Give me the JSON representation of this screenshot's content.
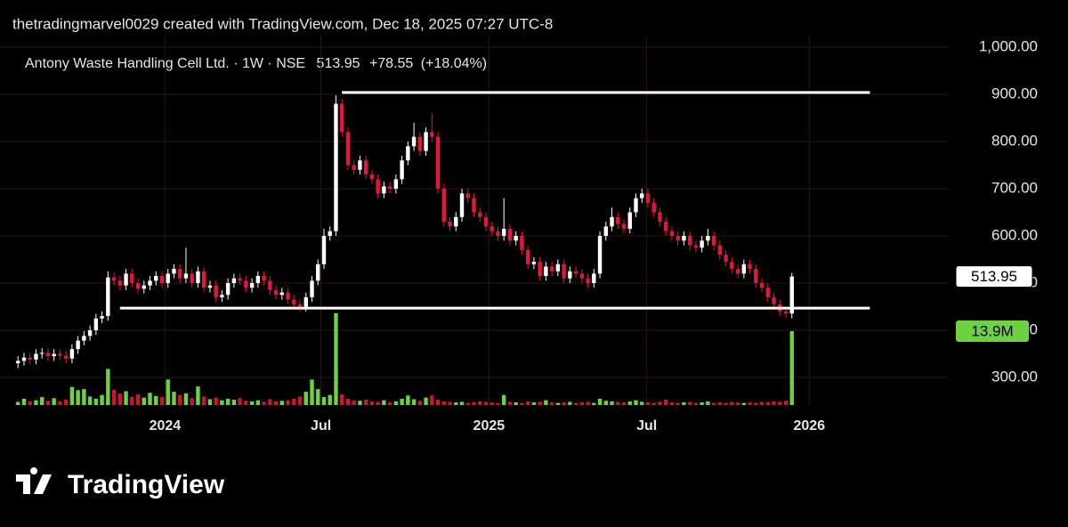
{
  "chart_data": {
    "type": "candlestick",
    "watermark": "thetradingmarvel0029 created with TradingView.com, Dec 18, 2025 07:27 UTC-8",
    "title": "Antony Waste Handling Cell Ltd. · 1W · NSE",
    "last_price": 513.95,
    "change": {
      "value": 78.55,
      "label": "+78.55"
    },
    "change_pct": {
      "value": 18.04,
      "label": "(+18.04%)"
    },
    "last_volume_label": "13.9M",
    "brand": "TradingView",
    "up_color": "#ffffff",
    "down_color": "#e2183a",
    "volume_up_color": "#6cd23f",
    "volume_down_color": "#c8172f",
    "level_color": "#ffffff",
    "open": [
      330,
      335,
      342,
      338,
      350,
      352,
      345,
      350,
      346,
      340,
      360,
      378,
      388,
      400,
      425,
      430,
      512,
      505,
      495,
      520,
      500,
      488,
      495,
      505,
      515,
      500,
      520,
      530,
      510,
      520,
      500,
      525,
      490,
      495,
      470,
      475,
      500,
      510,
      505,
      490,
      500,
      515,
      505,
      485,
      475,
      480,
      465,
      455,
      450,
      470,
      505,
      540,
      600,
      610,
      880,
      820,
      750,
      740,
      760,
      730,
      720,
      690,
      705,
      700,
      720,
      760,
      790,
      810,
      780,
      820,
      810,
      700,
      630,
      620,
      640,
      690,
      680,
      650,
      640,
      620,
      610,
      600,
      615,
      590,
      600,
      570,
      540,
      545,
      515,
      535,
      525,
      540,
      510,
      525,
      520,
      510,
      500,
      520,
      600,
      620,
      640,
      625,
      615,
      650,
      680,
      690,
      670,
      650,
      630,
      610,
      600,
      590,
      600,
      580,
      575,
      590,
      600,
      580,
      560,
      545,
      530,
      520,
      540,
      530,
      500,
      490,
      470,
      455,
      440,
      435.4
    ],
    "high": [
      345,
      352,
      352,
      360,
      362,
      362,
      360,
      360,
      356,
      370,
      388,
      398,
      410,
      435,
      440,
      525,
      522,
      515,
      530,
      530,
      510,
      505,
      515,
      525,
      525,
      530,
      540,
      540,
      575,
      530,
      535,
      535,
      505,
      505,
      485,
      510,
      520,
      520,
      515,
      510,
      525,
      525,
      515,
      495,
      490,
      490,
      475,
      465,
      480,
      515,
      550,
      615,
      620,
      898,
      890,
      830,
      760,
      770,
      770,
      740,
      730,
      715,
      715,
      730,
      770,
      800,
      840,
      820,
      830,
      860,
      820,
      710,
      640,
      650,
      700,
      700,
      690,
      660,
      650,
      630,
      620,
      680,
      625,
      610,
      610,
      580,
      555,
      555,
      545,
      545,
      550,
      550,
      535,
      535,
      530,
      520,
      530,
      610,
      630,
      660,
      650,
      635,
      660,
      690,
      700,
      700,
      680,
      660,
      640,
      620,
      610,
      610,
      610,
      590,
      600,
      615,
      610,
      590,
      570,
      555,
      540,
      550,
      550,
      540,
      510,
      500,
      480,
      465,
      450,
      522
    ],
    "low": [
      320,
      325,
      328,
      328,
      340,
      335,
      335,
      336,
      330,
      330,
      350,
      368,
      378,
      390,
      415,
      420,
      495,
      485,
      485,
      490,
      478,
      478,
      485,
      495,
      490,
      490,
      510,
      500,
      500,
      490,
      490,
      480,
      480,
      460,
      460,
      465,
      490,
      495,
      480,
      480,
      490,
      495,
      475,
      465,
      465,
      455,
      445,
      440,
      440,
      460,
      495,
      530,
      590,
      600,
      810,
      740,
      730,
      730,
      720,
      710,
      680,
      680,
      690,
      690,
      710,
      750,
      780,
      770,
      770,
      800,
      690,
      620,
      610,
      610,
      630,
      670,
      640,
      630,
      610,
      600,
      590,
      590,
      580,
      580,
      560,
      530,
      530,
      505,
      505,
      515,
      515,
      500,
      500,
      510,
      500,
      490,
      490,
      510,
      590,
      610,
      615,
      605,
      605,
      640,
      670,
      660,
      640,
      620,
      600,
      590,
      580,
      580,
      570,
      565,
      565,
      580,
      570,
      550,
      535,
      520,
      510,
      510,
      520,
      490,
      480,
      460,
      445,
      430,
      425,
      425
    ],
    "close": [
      335,
      342,
      338,
      350,
      352,
      345,
      350,
      346,
      340,
      360,
      378,
      388,
      400,
      425,
      430,
      512,
      505,
      495,
      520,
      500,
      488,
      495,
      505,
      515,
      500,
      520,
      530,
      510,
      520,
      500,
      525,
      490,
      495,
      470,
      475,
      500,
      510,
      505,
      490,
      500,
      515,
      505,
      485,
      475,
      480,
      465,
      455,
      450,
      470,
      505,
      540,
      600,
      610,
      880,
      820,
      750,
      740,
      760,
      730,
      720,
      690,
      705,
      700,
      720,
      760,
      790,
      810,
      780,
      820,
      810,
      700,
      630,
      620,
      640,
      690,
      680,
      650,
      640,
      620,
      610,
      600,
      615,
      590,
      600,
      570,
      540,
      545,
      515,
      535,
      525,
      540,
      510,
      525,
      520,
      510,
      500,
      520,
      600,
      620,
      640,
      625,
      615,
      650,
      680,
      690,
      670,
      650,
      630,
      610,
      600,
      590,
      600,
      580,
      575,
      590,
      600,
      580,
      560,
      545,
      530,
      520,
      540,
      530,
      500,
      490,
      470,
      455,
      440,
      435.4,
      513.95
    ],
    "volume": [
      600000,
      1200000,
      700000,
      900000,
      1500000,
      800000,
      1300000,
      700000,
      1000000,
      3400000,
      2800000,
      3000000,
      1600000,
      1200000,
      1900000,
      6800000,
      2900000,
      2200000,
      2600000,
      1500000,
      2000000,
      1400000,
      2300000,
      1700000,
      1500000,
      4800000,
      2500000,
      1900000,
      2200000,
      1300000,
      3500000,
      1600000,
      1100000,
      1400000,
      900000,
      1200000,
      1000000,
      1300000,
      800000,
      700000,
      900000,
      600000,
      1100000,
      700000,
      800000,
      900000,
      1200000,
      1600000,
      2500000,
      4800000,
      3000000,
      1500000,
      1900000,
      17300000,
      2000000,
      1200000,
      900000,
      800000,
      1000000,
      700000,
      600000,
      900000,
      500000,
      700000,
      1200000,
      1800000,
      1100000,
      800000,
      1400000,
      1800000,
      1000000,
      700000,
      600000,
      500000,
      600000,
      400000,
      500000,
      700000,
      600000,
      500000,
      400000,
      1900000,
      600000,
      500000,
      400000,
      700000,
      500000,
      600000,
      900000,
      500000,
      400000,
      500000,
      600000,
      400000,
      500000,
      600000,
      400000,
      1200000,
      800000,
      700000,
      600000,
      500000,
      700000,
      900000,
      600000,
      500000,
      400000,
      600000,
      1000000,
      500000,
      400000,
      500000,
      600000,
      400000,
      500000,
      700000,
      400000,
      500000,
      400000,
      600000,
      500000,
      400000,
      500000,
      400000,
      600000,
      500000,
      700000,
      600000,
      800000,
      13900000
    ],
    "levels": [
      {
        "value": 904,
        "from": 54,
        "to": 142
      },
      {
        "value": 447,
        "from": 17,
        "to": 142
      }
    ],
    "xlim": [
      -3,
      155
    ],
    "xticks": [
      {
        "value": 24.5,
        "label": "2024"
      },
      {
        "value": 50.5,
        "label": "Jul"
      },
      {
        "value": 78.5,
        "label": "2025"
      },
      {
        "value": 104.8,
        "label": "Jul"
      },
      {
        "value": 131.9,
        "label": "2026"
      }
    ],
    "ylim": [
      241.5,
      1024.5
    ],
    "yticks": [
      {
        "value": 300,
        "label": "300.00"
      },
      {
        "value": 400,
        "label": "400.00"
      },
      {
        "value": 500,
        "label": "500.00"
      },
      {
        "value": 600,
        "label": "600.00"
      },
      {
        "value": 700,
        "label": "700.00"
      },
      {
        "value": 800,
        "label": "800.00"
      },
      {
        "value": 900,
        "label": "900.00"
      },
      {
        "value": 1000,
        "label": "1,000.00"
      }
    ],
    "y2lim": [
      0,
      69500000
    ],
    "grid": true
  }
}
